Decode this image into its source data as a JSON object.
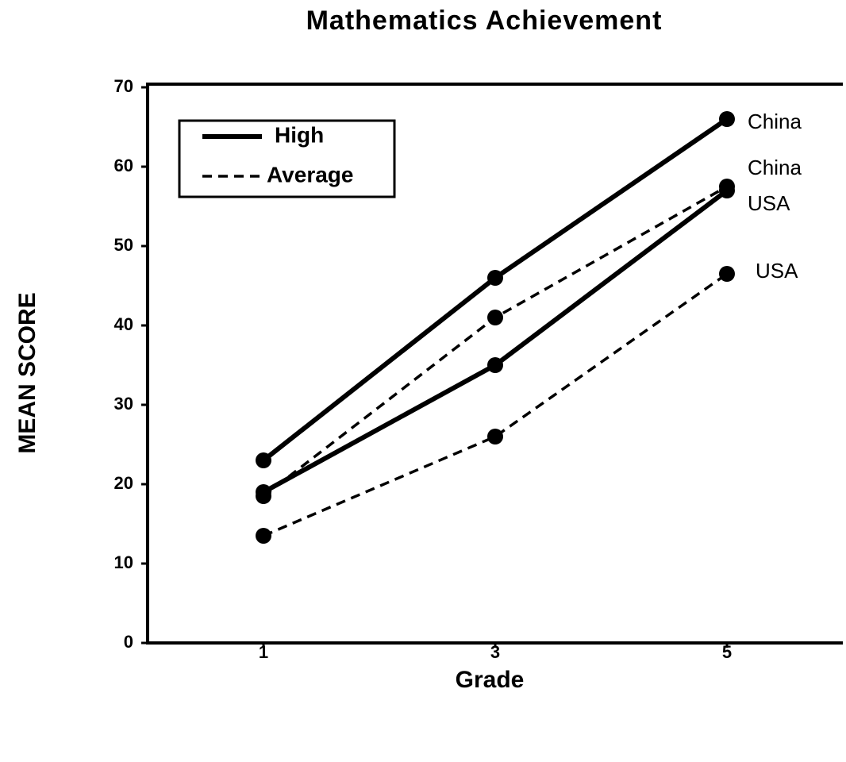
{
  "chart_data": {
    "type": "line",
    "title": "Mathematics Achievement",
    "x_label": "Grade",
    "y_label": "MEAN SCORE",
    "x": [
      1,
      3,
      5
    ],
    "xlim": [
      0,
      6
    ],
    "xticks": [
      1,
      3,
      5
    ],
    "ylim": [
      0,
      70
    ],
    "yticks": [
      0,
      10,
      20,
      30,
      40,
      50,
      60,
      70
    ],
    "legend": [
      {
        "label": "High",
        "dash": "solid"
      },
      {
        "label": "Average",
        "dash": "dashed"
      }
    ],
    "legend_position": "upper left",
    "series": [
      {
        "name": "China",
        "dash": "solid",
        "color": "#000000",
        "values": [
          23,
          46,
          66
        ]
      },
      {
        "name": "China",
        "dash": "dashed",
        "color": "#000000",
        "values": [
          18.5,
          41,
          57.5
        ]
      },
      {
        "name": "USA",
        "dash": "solid",
        "color": "#000000",
        "values": [
          19,
          35,
          57
        ]
      },
      {
        "name": "USA",
        "dash": "dashed",
        "color": "#000000",
        "values": [
          13.5,
          26,
          46.5
        ]
      }
    ]
  }
}
